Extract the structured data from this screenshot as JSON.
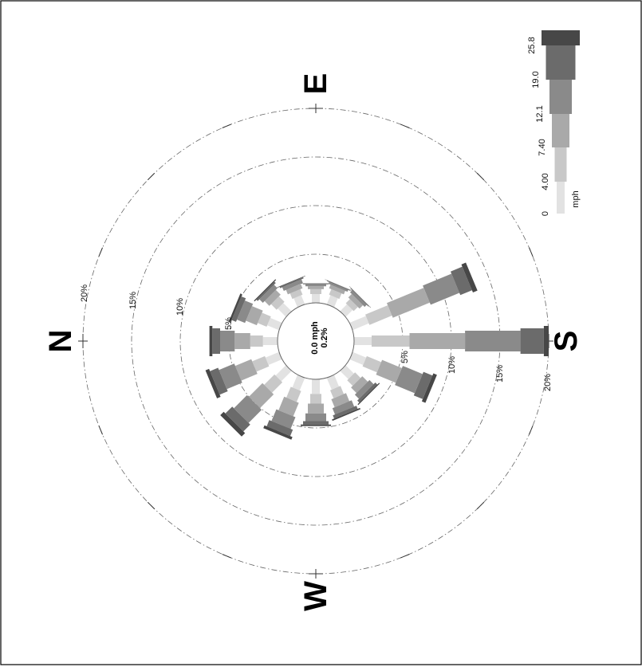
{
  "compass": {
    "N": "N",
    "E": "E",
    "S": "S",
    "W": "W"
  },
  "center": {
    "speed": "0.0 mph",
    "calm": "0.2%"
  },
  "legend": {
    "labels": [
      "0",
      "4.00",
      "7.40",
      "12.1",
      "19.0",
      "25.8"
    ],
    "unit": "mph"
  },
  "chart_data": {
    "type": "bar",
    "subtype": "wind rose (polar stacked bar)",
    "directions": [
      "N",
      "NNE",
      "NE",
      "ENE",
      "E",
      "ESE",
      "SE",
      "SSE",
      "S",
      "SSW",
      "SW",
      "WSW",
      "W",
      "WNW",
      "NW",
      "NNW"
    ],
    "bearings_deg": [
      0,
      22.5,
      45,
      67.5,
      90,
      112.5,
      135,
      157.5,
      180,
      202.5,
      225,
      247.5,
      270,
      292.5,
      315,
      337.5
    ],
    "speed_bins_mph": [
      "0",
      "4.00",
      "7.40",
      "12.1",
      "19.0",
      "25.8"
    ],
    "ring_percent": [
      5,
      10,
      15,
      20
    ],
    "ring_labels": [
      "5%",
      "10%",
      "15%",
      "20%"
    ],
    "calm_percent": 0.2,
    "colors": [
      "#e2e2e2",
      "#c8c8c8",
      "#a9a9a9",
      "#8a8a8a",
      "#6b6b6b",
      "#474747"
    ],
    "series": [
      {
        "values": [
          1.5,
          1.3,
          1.2,
          1.0,
          0.9,
          1.0,
          1.0,
          1.8,
          1.8,
          1.5,
          1.2,
          1.3,
          1.5,
          1.4,
          1.5,
          1.5
        ]
      },
      {
        "values": [
          1.3,
          1.0,
          0.8,
          0.6,
          0.5,
          0.6,
          0.6,
          2.5,
          3.9,
          1.6,
          0.8,
          0.9,
          1.0,
          1.2,
          1.5,
          1.4
        ]
      },
      {
        "values": [
          1.6,
          1.2,
          0.7,
          0.5,
          0.3,
          0.4,
          0.5,
          4.1,
          5.7,
          2.2,
          0.8,
          0.9,
          1.0,
          1.5,
          2.0,
          1.8
        ]
      },
      {
        "values": [
          1.5,
          0.9,
          0.5,
          0.4,
          0.2,
          0.2,
          0.3,
          3.2,
          5.7,
          2.2,
          0.6,
          0.7,
          0.8,
          1.3,
          1.9,
          1.7
        ]
      },
      {
        "values": [
          0.8,
          0.5,
          0.2,
          0.15,
          0.07,
          0.07,
          0.07,
          1.3,
          2.4,
          1.0,
          0.3,
          0.35,
          0.35,
          0.7,
          1.0,
          0.9
        ]
      },
      {
        "values": [
          0.3,
          0.2,
          0.1,
          0.05,
          0.03,
          0.03,
          0.03,
          0.5,
          0.5,
          0.4,
          0.1,
          0.15,
          0.15,
          0.3,
          0.5,
          0.4
        ]
      }
    ],
    "grid": true,
    "legend_position": "top-right"
  }
}
